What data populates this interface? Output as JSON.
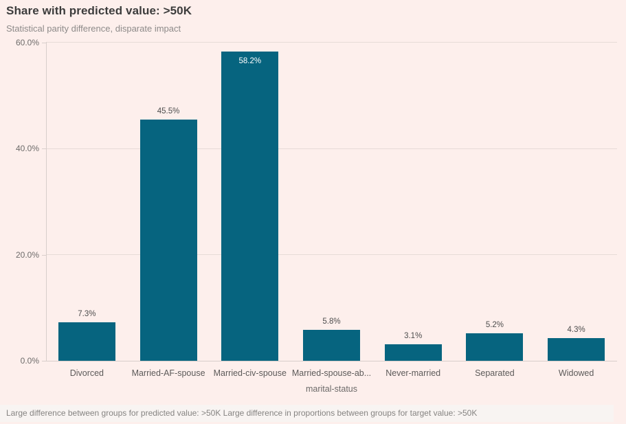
{
  "header": {
    "title": "Share with predicted value: >50K",
    "subtitle": "Statistical parity difference, disparate impact"
  },
  "chart_data": {
    "type": "bar",
    "title": "Share with predicted value: >50K",
    "subtitle": "Statistical parity difference, disparate impact",
    "categories": [
      "Divorced",
      "Married-AF-spouse",
      "Married-civ-spouse",
      "Married-spouse-ab...",
      "Never-married",
      "Separated",
      "Widowed"
    ],
    "values": [
      7.3,
      45.5,
      58.2,
      5.8,
      3.1,
      5.2,
      4.3
    ],
    "value_labels": [
      "7.3%",
      "45.5%",
      "58.2%",
      "5.8%",
      "3.1%",
      "5.2%",
      "4.3%"
    ],
    "label_inside": [
      false,
      false,
      true,
      false,
      false,
      false,
      false
    ],
    "xlabel": "marital-status",
    "ylabel": "",
    "ylim": [
      0,
      60
    ],
    "yticks": [
      0,
      20,
      40,
      60
    ],
    "ytick_labels": [
      "0.0%",
      "20.0%",
      "40.0%",
      "60.0%"
    ],
    "grid": true,
    "legend": false,
    "bar_color": "#06647F"
  },
  "footer": {
    "text": "Large difference between groups for predicted value: >50K Large difference in proportions between groups for target value: >50K"
  },
  "colors": {
    "background": "#FDEFEC",
    "footer_background": "#F8F4F2",
    "bar": "#06647F",
    "gridline": "#E6DBD7",
    "axis_line": "#D8CECB",
    "title_text": "#3C3C3C",
    "subtitle_text": "#8D8A89",
    "value_label_inside_text": "#FFFFFF"
  }
}
